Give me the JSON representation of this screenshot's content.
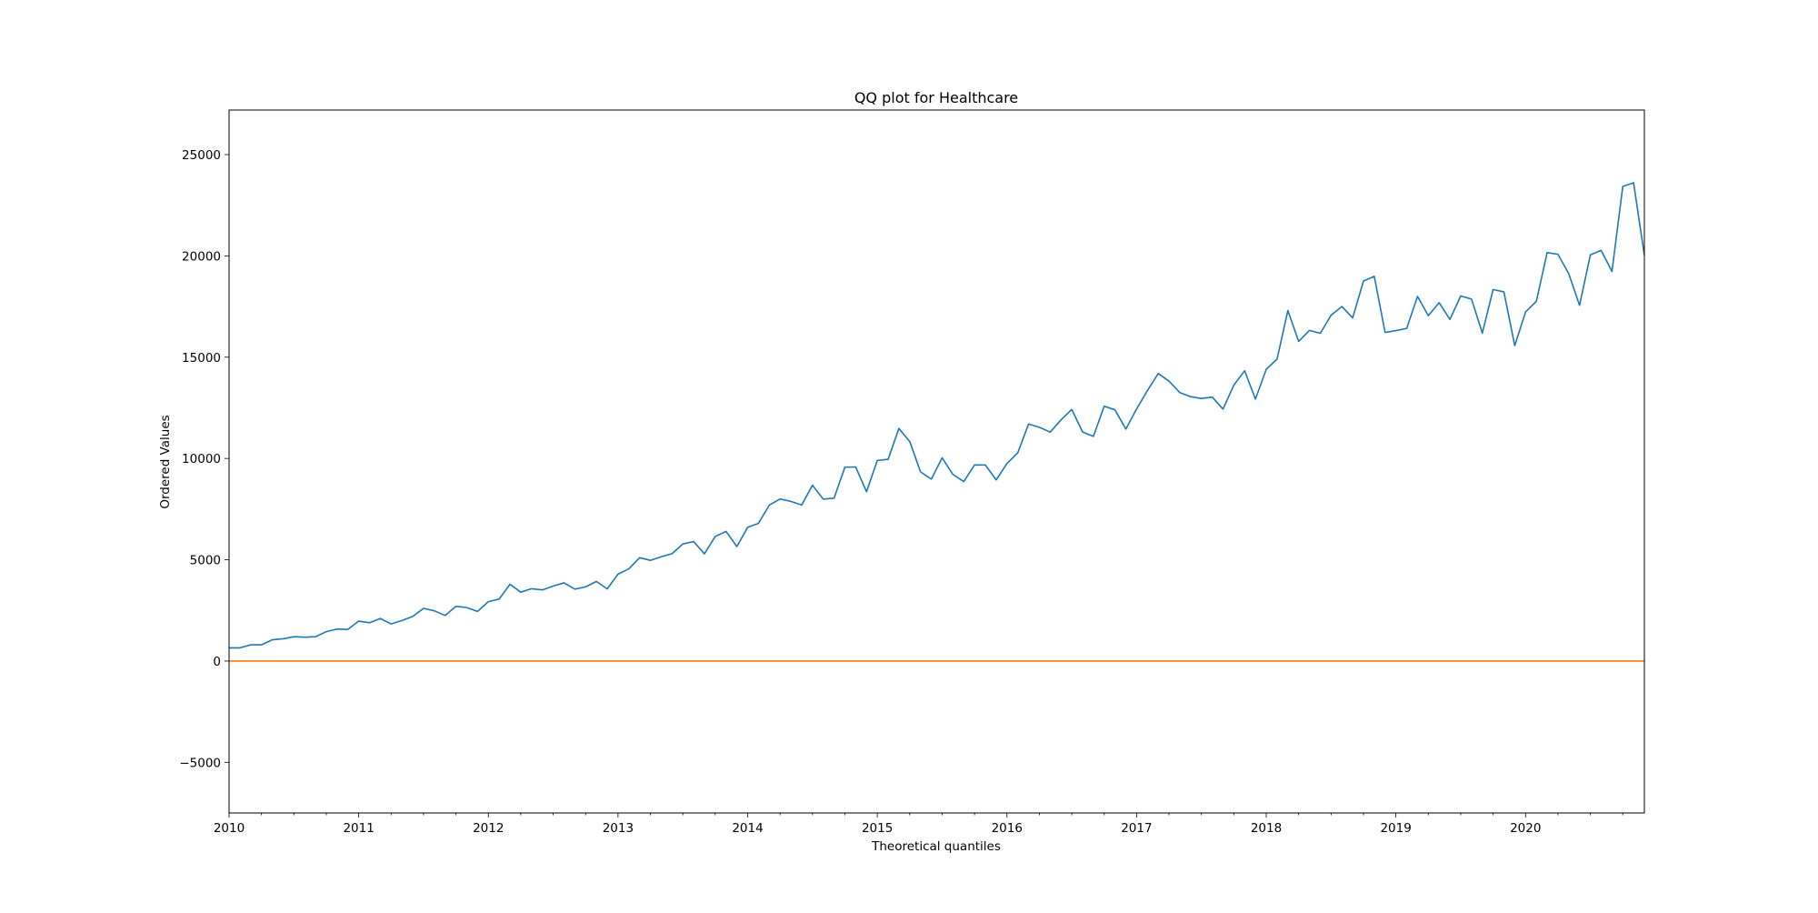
{
  "chart_data": {
    "type": "line",
    "title": "QQ plot for Healthcare",
    "xlabel": "Theoretical quantiles",
    "ylabel": "Ordered Values",
    "x_start": "2010-01",
    "x_end": "2020-12",
    "xlim": [
      "2010-01",
      "2020-12"
    ],
    "ylim": [
      -7500,
      27200
    ],
    "xticks": [
      "2010",
      "2011",
      "2012",
      "2013",
      "2014",
      "2015",
      "2016",
      "2017",
      "2018",
      "2019",
      "2020"
    ],
    "yticks": [
      -5000,
      0,
      5000,
      10000,
      15000,
      20000,
      25000
    ],
    "grid": false,
    "series": [
      {
        "color": "#1f77b4",
        "x": [
          "2010-01",
          "2010-02",
          "2010-03",
          "2010-04",
          "2010-05",
          "2010-06",
          "2010-07",
          "2010-08",
          "2010-09",
          "2010-10",
          "2010-11",
          "2010-12",
          "2011-01",
          "2011-02",
          "2011-03",
          "2011-04",
          "2011-05",
          "2011-06",
          "2011-07",
          "2011-08",
          "2011-09",
          "2011-10",
          "2011-11",
          "2011-12",
          "2012-01",
          "2012-02",
          "2012-03",
          "2012-04",
          "2012-05",
          "2012-06",
          "2012-07",
          "2012-08",
          "2012-09",
          "2012-10",
          "2012-11",
          "2012-12",
          "2013-01",
          "2013-02",
          "2013-03",
          "2013-04",
          "2013-05",
          "2013-06",
          "2013-07",
          "2013-08",
          "2013-09",
          "2013-10",
          "2013-11",
          "2013-12",
          "2014-01",
          "2014-02",
          "2014-03",
          "2014-04",
          "2014-05",
          "2014-06",
          "2014-07",
          "2014-08",
          "2014-09",
          "2014-10",
          "2014-11",
          "2014-12",
          "2015-01",
          "2015-02",
          "2015-03",
          "2015-04",
          "2015-05",
          "2015-06",
          "2015-07",
          "2015-08",
          "2015-09",
          "2015-10",
          "2015-11",
          "2015-12",
          "2016-01",
          "2016-02",
          "2016-03",
          "2016-04",
          "2016-05",
          "2016-06",
          "2016-07",
          "2016-08",
          "2016-09",
          "2016-10",
          "2016-11",
          "2016-12",
          "2017-01",
          "2017-02",
          "2017-03",
          "2017-04",
          "2017-05",
          "2017-06",
          "2017-07",
          "2017-08",
          "2017-09",
          "2017-10",
          "2017-11",
          "2017-12",
          "2018-01",
          "2018-02",
          "2018-03",
          "2018-04",
          "2018-05",
          "2018-06",
          "2018-07",
          "2018-08",
          "2018-09",
          "2018-10",
          "2018-11",
          "2018-12",
          "2019-01",
          "2019-02",
          "2019-03",
          "2019-04",
          "2019-05",
          "2019-06",
          "2019-07",
          "2019-08",
          "2019-09",
          "2019-10",
          "2019-11",
          "2019-12",
          "2020-01",
          "2020-02",
          "2020-03",
          "2020-04",
          "2020-05",
          "2020-06",
          "2020-07",
          "2020-08",
          "2020-09",
          "2020-10",
          "2020-11",
          "2020-12"
        ],
        "values": [
          650,
          650,
          800,
          800,
          1050,
          1100,
          1200,
          1180,
          1200,
          1450,
          1580,
          1560,
          1970,
          1890,
          2100,
          1830,
          2000,
          2200,
          2600,
          2480,
          2250,
          2700,
          2640,
          2450,
          2930,
          3060,
          3790,
          3400,
          3570,
          3510,
          3700,
          3860,
          3550,
          3660,
          3930,
          3560,
          4290,
          4550,
          5100,
          4970,
          5150,
          5300,
          5780,
          5900,
          5290,
          6150,
          6400,
          5650,
          6600,
          6800,
          7690,
          8000,
          7880,
          7700,
          8680,
          7990,
          8040,
          9570,
          9580,
          8360,
          9900,
          9960,
          11480,
          10840,
          9340,
          8980,
          10030,
          9210,
          8860,
          9680,
          9680,
          8940,
          9750,
          10280,
          11700,
          11540,
          11300,
          11900,
          12420,
          11310,
          11090,
          12580,
          12400,
          11450,
          12440,
          13350,
          14190,
          13820,
          13250,
          13050,
          12960,
          13030,
          12440,
          13620,
          14330,
          12930,
          14400,
          14900,
          17300,
          15780,
          16320,
          16180,
          17070,
          17500,
          16940,
          18760,
          18990,
          16220,
          16310,
          16420,
          18000,
          17050,
          17690,
          16860,
          18020,
          17870,
          16190,
          18340,
          18220,
          15570,
          17230,
          17760,
          20160,
          20080,
          19120,
          17560,
          20050,
          20270,
          19230,
          23430,
          23610,
          20020
        ]
      },
      {
        "color": "#ff7f0e",
        "x": [
          "2010-01",
          "2020-12"
        ],
        "values": [
          0,
          0
        ]
      }
    ]
  }
}
